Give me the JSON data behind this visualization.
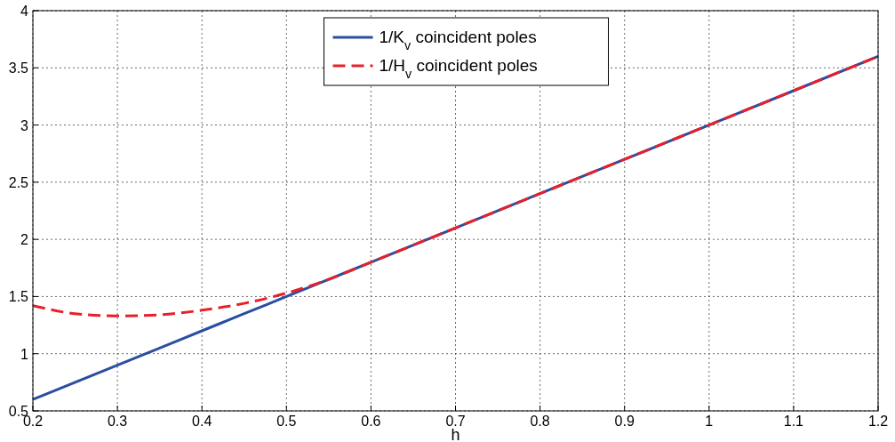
{
  "chart_data": {
    "type": "line",
    "xlabel": "h",
    "xlim": [
      0.2,
      1.2
    ],
    "xticks": [
      0.2,
      0.3,
      0.4,
      0.5,
      0.6,
      0.7,
      0.8,
      0.9,
      1,
      1.1,
      1.2
    ],
    "ylim": [
      0.5,
      4
    ],
    "yticks": [
      0.5,
      1,
      1.5,
      2,
      2.5,
      3,
      3.5,
      4
    ],
    "grid": true,
    "legend": "top",
    "x": [
      0.2,
      0.25,
      0.3,
      0.35,
      0.4,
      0.45,
      0.5,
      0.55,
      0.6,
      0.7,
      0.8,
      0.9,
      1,
      1.1,
      1.2
    ],
    "series": [
      {
        "name": "1/K$_{v}$ coincident poles",
        "color": "#2a4ea0",
        "line_style": "solid",
        "values": [
          0.6,
          0.75,
          0.9,
          1.05,
          1.2,
          1.35,
          1.5,
          1.65,
          1.8,
          2.1,
          2.4,
          2.7,
          3,
          3.3,
          3.6
        ]
      },
      {
        "name": "1/H$_{v}$ coincident poles",
        "color": "#e8202a",
        "line_style": "dashed",
        "values": [
          1.42,
          1.35,
          1.33,
          1.34,
          1.38,
          1.44,
          1.53,
          1.65,
          1.8,
          2.1,
          2.4,
          2.7,
          3,
          3.3,
          3.6
        ]
      }
    ]
  }
}
